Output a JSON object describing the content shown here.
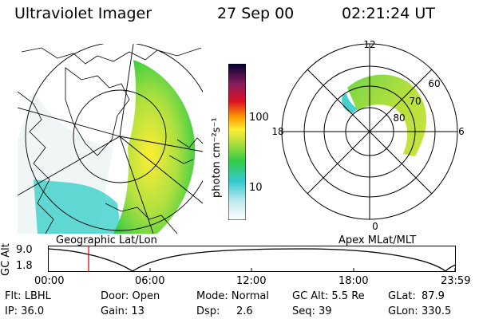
{
  "header": {
    "instrument": "Ultraviolet Imager",
    "date": "27 Sep 00",
    "time": "02:21:24 UT"
  },
  "colorbar": {
    "unit_label": "photon cm⁻²s⁻¹",
    "ticks": [
      "100",
      "10"
    ]
  },
  "left_panel": {
    "caption": "Geographic Lat/Lon"
  },
  "right_panel": {
    "caption": "Apex MLat/MLT",
    "mlt_labels": {
      "top": "12",
      "left": "18",
      "right": "6",
      "bottom": "0"
    },
    "lat_labels": [
      "60",
      "70",
      "80"
    ]
  },
  "altitude_plot": {
    "ylabel": "GC Alt",
    "yticks": [
      "9.0",
      "1.8"
    ],
    "xticks": [
      "00:00",
      "06:00",
      "12:00",
      "18:00",
      "23:59"
    ]
  },
  "info": {
    "flt": "Flt: LBHL",
    "door": "Door: Open",
    "mode": "Mode: Normal",
    "gc_alt": "GC Alt: 5.5 Re",
    "glat_label": "GLat:",
    "glat_value": "87.9",
    "ip": "IP: 36.0",
    "gain": "Gain: 13",
    "dsp_label": "Dsp:",
    "dsp_value": "2.6",
    "seq": "Seq: 39",
    "glon_label": "GLon:",
    "glon_value": "330.5"
  }
}
